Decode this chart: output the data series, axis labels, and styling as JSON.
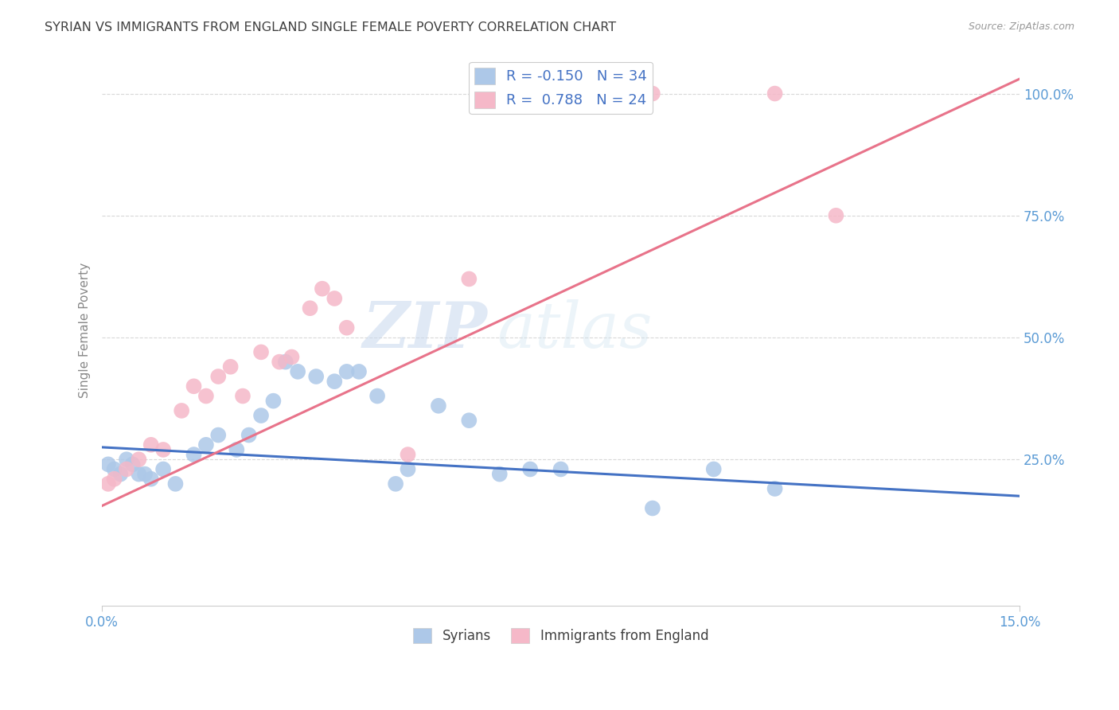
{
  "title": "SYRIAN VS IMMIGRANTS FROM ENGLAND SINGLE FEMALE POVERTY CORRELATION CHART",
  "source": "Source: ZipAtlas.com",
  "ylabel": "Single Female Poverty",
  "ytick_labels": [
    "25.0%",
    "50.0%",
    "75.0%",
    "100.0%"
  ],
  "ytick_values": [
    0.25,
    0.5,
    0.75,
    1.0
  ],
  "xlim": [
    0,
    0.15
  ],
  "ylim": [
    -0.05,
    1.08
  ],
  "legend_r_blue": "-0.150",
  "legend_n_blue": "34",
  "legend_r_pink": "0.788",
  "legend_n_pink": "24",
  "label_blue": "Syrians",
  "label_pink": "Immigrants from England",
  "blue_color": "#adc8e8",
  "pink_color": "#f5b8c8",
  "blue_line_color": "#4472c4",
  "pink_line_color": "#e8738a",
  "title_color": "#404040",
  "axis_color": "#5b9bd5",
  "legend_text_color": "#4472c4",
  "watermark_zip": "ZIP",
  "watermark_atlas": "atlas",
  "grid_color": "#d8d8d8",
  "background_color": "#ffffff",
  "blue_scatter_x": [
    0.001,
    0.002,
    0.003,
    0.004,
    0.005,
    0.006,
    0.007,
    0.008,
    0.01,
    0.012,
    0.015,
    0.017,
    0.019,
    0.022,
    0.024,
    0.026,
    0.028,
    0.03,
    0.032,
    0.035,
    0.038,
    0.04,
    0.042,
    0.045,
    0.048,
    0.05,
    0.055,
    0.06,
    0.065,
    0.07,
    0.075,
    0.09,
    0.1,
    0.11
  ],
  "blue_scatter_y": [
    0.24,
    0.23,
    0.22,
    0.25,
    0.24,
    0.22,
    0.22,
    0.21,
    0.23,
    0.2,
    0.26,
    0.28,
    0.3,
    0.27,
    0.3,
    0.34,
    0.37,
    0.45,
    0.43,
    0.42,
    0.41,
    0.43,
    0.43,
    0.38,
    0.2,
    0.23,
    0.36,
    0.33,
    0.22,
    0.23,
    0.23,
    0.15,
    0.23,
    0.19
  ],
  "pink_scatter_x": [
    0.001,
    0.002,
    0.004,
    0.006,
    0.008,
    0.01,
    0.013,
    0.015,
    0.017,
    0.019,
    0.021,
    0.023,
    0.026,
    0.029,
    0.031,
    0.034,
    0.036,
    0.038,
    0.04,
    0.05,
    0.06,
    0.09,
    0.11,
    0.12
  ],
  "pink_scatter_y": [
    0.2,
    0.21,
    0.23,
    0.25,
    0.28,
    0.27,
    0.35,
    0.4,
    0.38,
    0.42,
    0.44,
    0.38,
    0.47,
    0.45,
    0.46,
    0.56,
    0.6,
    0.58,
    0.52,
    0.26,
    0.62,
    1.0,
    1.0,
    0.75
  ],
  "blue_trend_x": [
    0.0,
    0.15
  ],
  "blue_trend_y": [
    0.275,
    0.175
  ],
  "pink_trend_x": [
    0.0,
    0.15
  ],
  "pink_trend_y": [
    0.155,
    1.03
  ]
}
